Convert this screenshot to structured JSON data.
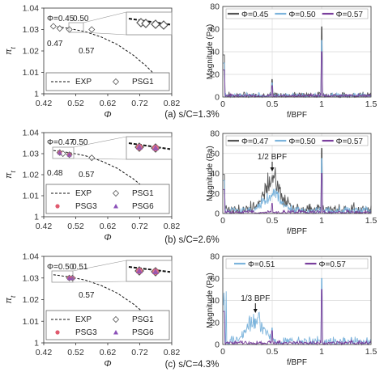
{
  "captions": [
    "(a) s/C=1.3%",
    "(b) s/C=2.6%",
    "(c) s/C=4.3%"
  ],
  "chart_data": [
    {
      "id": "a-left",
      "type": "line",
      "xlabel": "Φ",
      "ylabel": "π_t",
      "xlim": [
        0.42,
        0.82
      ],
      "ylim": [
        1.0,
        1.04
      ],
      "xticks": [
        "0.42",
        "0.52",
        "0.62",
        "0.72",
        "0.82"
      ],
      "yticks": [
        "1",
        "1.01",
        "1.02",
        "1.03",
        "1.04"
      ],
      "series": [
        {
          "name": "EXP",
          "style": "dashed",
          "x": [
            0.45,
            0.5,
            0.55,
            0.6,
            0.65,
            0.7,
            0.74,
            0.78,
            0.8
          ],
          "y": [
            1.0315,
            1.0305,
            1.029,
            1.0265,
            1.023,
            1.018,
            1.013,
            1.007,
            1.003
          ]
        },
        {
          "name": "PSG1",
          "marker": "diamond",
          "x": [
            0.45,
            0.47,
            0.5,
            0.57
          ],
          "y": [
            1.0315,
            1.0305,
            1.03,
            1.03
          ]
        }
      ],
      "point_labels": [
        "Φ=0.45",
        "0.50",
        "0.47",
        "0.57"
      ]
    },
    {
      "id": "a-right",
      "type": "line",
      "xlabel": "f/BPF",
      "ylabel": "Magnitude (Pa)",
      "xlim": [
        0,
        1.5
      ],
      "ylim": [
        0,
        80
      ],
      "xticks": [
        "0",
        "0.5",
        "1",
        "1.5"
      ],
      "yticks": [
        "0",
        "20",
        "40",
        "60",
        "80"
      ],
      "series": [
        {
          "name": "Φ=0.45",
          "color": "#555555",
          "noise": 5,
          "peak": 62
        },
        {
          "name": "Φ=0.50",
          "color": "#7cb4dc",
          "noise": 4,
          "peak": 50
        },
        {
          "name": "Φ=0.57",
          "color": "#7a3f9d",
          "noise": 3,
          "peak": 40
        }
      ]
    },
    {
      "id": "b-left",
      "type": "line",
      "xlabel": "Φ",
      "ylabel": "π_t",
      "xlim": [
        0.42,
        0.82
      ],
      "ylim": [
        1.0,
        1.04
      ],
      "xticks": [
        "0.42",
        "0.52",
        "0.62",
        "0.72",
        "0.82"
      ],
      "yticks": [
        "1",
        "1.01",
        "1.02",
        "1.03",
        "1.04"
      ],
      "series": [
        {
          "name": "EXP",
          "style": "dashed",
          "x": [
            0.45,
            0.5,
            0.55,
            0.6,
            0.65,
            0.7,
            0.74,
            0.78,
            0.8
          ],
          "y": [
            1.0315,
            1.0305,
            1.029,
            1.0265,
            1.023,
            1.018,
            1.013,
            1.007,
            1.003
          ]
        },
        {
          "name": "PSG1",
          "marker": "diamond",
          "x": [
            0.47,
            0.48,
            0.5,
            0.57
          ],
          "y": [
            1.0305,
            1.03,
            1.0295,
            1.028
          ]
        },
        {
          "name": "PSG3",
          "marker": "circle",
          "x": [
            0.47,
            0.5
          ],
          "y": [
            1.0305,
            1.0295
          ]
        },
        {
          "name": "PSG6",
          "marker": "triangle",
          "x": [
            0.47,
            0.5
          ],
          "y": [
            1.0305,
            1.0295
          ]
        }
      ],
      "point_labels": [
        "Φ=0.47",
        "0.50",
        "0.48",
        "0.57"
      ]
    },
    {
      "id": "b-right",
      "type": "line",
      "xlabel": "f/BPF",
      "ylabel": "Magnitude (Pa)",
      "xlim": [
        0,
        1.5
      ],
      "ylim": [
        0,
        80
      ],
      "xticks": [
        "0",
        "0.5",
        "1",
        "1.5"
      ],
      "yticks": [
        "0",
        "20",
        "40",
        "60",
        "80"
      ],
      "annotation": "1/2 BPF",
      "series": [
        {
          "name": "Φ=0.47",
          "color": "#555555",
          "noise": 12,
          "hump": 36,
          "peak": 65
        },
        {
          "name": "Φ=0.50",
          "color": "#7cb4dc",
          "noise": 8,
          "hump": 20,
          "peak": 55
        },
        {
          "name": "Φ=0.57",
          "color": "#7a3f9d",
          "noise": 4,
          "peak": 40
        }
      ]
    },
    {
      "id": "c-left",
      "type": "line",
      "xlabel": "Φ",
      "ylabel": "π_t",
      "xlim": [
        0.42,
        0.82
      ],
      "ylim": [
        1.0,
        1.04
      ],
      "xticks": [
        "0.42",
        "0.52",
        "0.62",
        "0.72",
        "0.82"
      ],
      "yticks": [
        "1",
        "1.01",
        "1.02",
        "1.03",
        "1.04"
      ],
      "series": [
        {
          "name": "EXP",
          "style": "dashed",
          "x": [
            0.45,
            0.5,
            0.55,
            0.6,
            0.65,
            0.7,
            0.74,
            0.78,
            0.8
          ],
          "y": [
            1.0315,
            1.0305,
            1.029,
            1.0265,
            1.023,
            1.018,
            1.013,
            1.007,
            1.003
          ]
        },
        {
          "name": "PSG1",
          "marker": "diamond",
          "x": [
            0.5,
            0.51
          ],
          "y": [
            1.03,
            1.03
          ]
        },
        {
          "name": "PSG3",
          "marker": "circle",
          "x": [
            0.5,
            0.51
          ],
          "y": [
            1.03,
            1.03
          ]
        },
        {
          "name": "PSG6",
          "marker": "triangle",
          "x": [
            0.5,
            0.51
          ],
          "y": [
            1.03,
            1.03
          ]
        }
      ],
      "point_labels": [
        "Φ=0.50",
        "0.51",
        "0.57"
      ]
    },
    {
      "id": "c-right",
      "type": "line",
      "xlabel": "f/BPF",
      "ylabel": "Magnitude (Pa)",
      "xlim": [
        0,
        1.5
      ],
      "ylim": [
        0,
        80
      ],
      "xticks": [
        "0",
        "0.5",
        "1",
        "1.5"
      ],
      "yticks": [
        "0",
        "20",
        "40",
        "60",
        "80"
      ],
      "annotation": "1/3 BPF",
      "series": [
        {
          "name": "Φ=0.51",
          "color": "#7cb4dc",
          "noise": 8,
          "hump": 24,
          "peak": 60
        },
        {
          "name": "Φ=0.57",
          "color": "#7a3f9d",
          "noise": 4,
          "peak": 50
        }
      ]
    }
  ],
  "colors": {
    "psg3": "#e05a6e",
    "psg6": "#8a4fb8",
    "grey": "#555555",
    "blue": "#7cb4dc",
    "purple": "#7a3f9d"
  }
}
